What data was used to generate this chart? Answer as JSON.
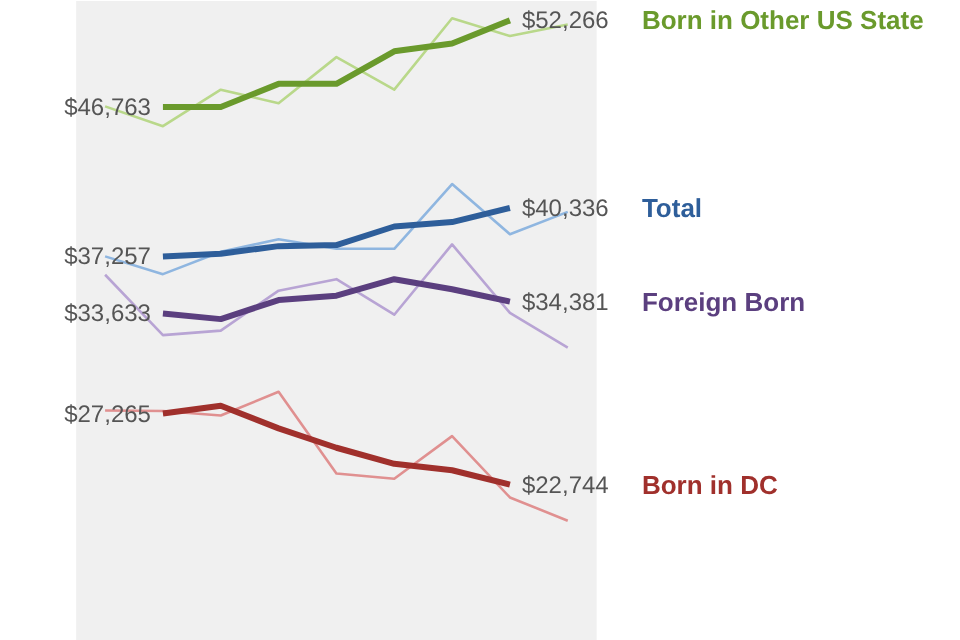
{
  "chart_data": {
    "type": "line",
    "categories": [
      null,
      null,
      null,
      null,
      null,
      null,
      null,
      null,
      null
    ],
    "ylim": [
      12800,
      53500
    ],
    "tick_labels": false,
    "grid": false,
    "marker": "none",
    "line_style": "solid",
    "series": [
      {
        "color": "#b9d88a",
        "values": [
          46800,
          45540,
          47860,
          47000,
          49930,
          47860,
          52400,
          51270,
          52000
        ]
      },
      {
        "color": "#8fb6e0",
        "values": [
          37260,
          36130,
          37550,
          38350,
          37740,
          37740,
          41860,
          38670,
          40090
        ]
      },
      {
        "color": "#b8a4d4",
        "values": [
          36090,
          32250,
          32540,
          35080,
          35810,
          33550,
          38020,
          33670,
          31450
        ]
      },
      {
        "color": "#e09090",
        "values": [
          27460,
          27430,
          27140,
          28650,
          23450,
          23120,
          25830,
          21930,
          20450
        ]
      },
      {
        "name": "Born in Other US State",
        "color": "#6a9a2c",
        "values": [
          null,
          46763,
          46763,
          48230,
          48230,
          50300,
          50800,
          52266,
          null
        ],
        "value_labels": [
          null,
          "$46,763",
          null,
          null,
          null,
          null,
          null,
          "$52,266",
          null
        ]
      },
      {
        "name": "Total",
        "color": "#2e5e9a",
        "values": [
          null,
          37257,
          37430,
          37910,
          37980,
          39160,
          39440,
          40336,
          null
        ],
        "value_labels": [
          null,
          "$37,257",
          null,
          null,
          null,
          null,
          null,
          "$40,336",
          null
        ]
      },
      {
        "name": "Foreign Born",
        "color": "#5b3f7f",
        "values": [
          null,
          33633,
          33270,
          34480,
          34760,
          35810,
          35170,
          34381,
          null
        ],
        "value_labels": [
          null,
          "$33,633",
          null,
          null,
          null,
          null,
          null,
          "$34,381",
          null
        ]
      },
      {
        "name": "Born in DC",
        "color": "#a0302c",
        "values": [
          null,
          27265,
          27760,
          26320,
          25090,
          24070,
          23660,
          22744,
          null
        ],
        "value_labels": [
          null,
          "$27,265",
          null,
          null,
          null,
          null,
          null,
          "$22,744",
          null
        ]
      }
    ]
  }
}
